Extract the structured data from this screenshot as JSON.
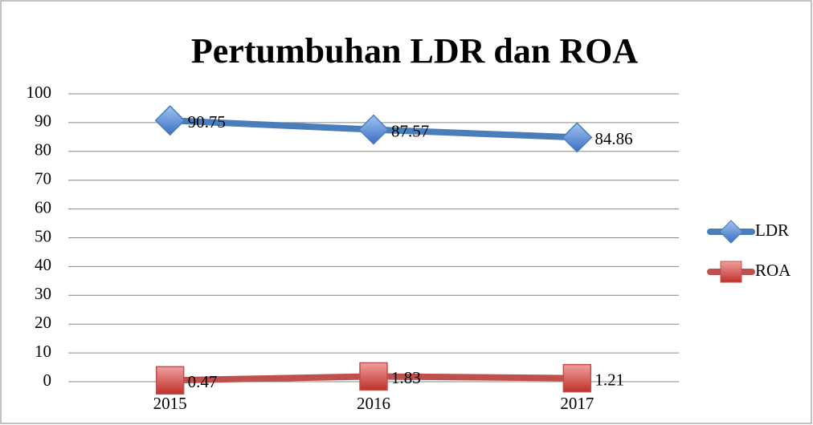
{
  "chart_data": {
    "type": "line",
    "title": "Pertumbuhan LDR dan ROA",
    "categories": [
      "2015",
      "2016",
      "2017"
    ],
    "series": [
      {
        "name": "LDR",
        "color": "#4a7ebb",
        "marker": "diamond",
        "values": [
          90.75,
          87.57,
          84.86
        ]
      },
      {
        "name": "ROA",
        "color": "#c0504d",
        "marker": "square",
        "values": [
          0.47,
          1.83,
          1.21
        ]
      }
    ],
    "ylim": [
      0,
      100
    ],
    "yticks": [
      0,
      10,
      20,
      30,
      40,
      50,
      60,
      70,
      80,
      90,
      100
    ],
    "grid": true,
    "legend": "right"
  }
}
